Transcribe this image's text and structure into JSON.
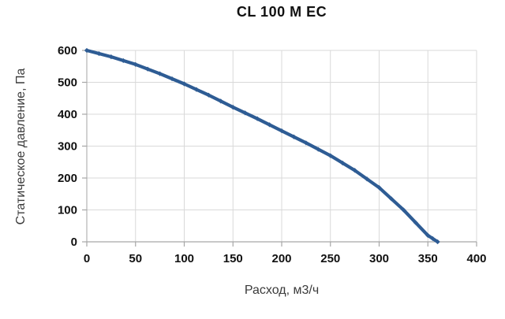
{
  "chart_data": {
    "type": "line",
    "title": "CL 100 M EC",
    "xlabel": "Расход, м3/ч",
    "ylabel": "Статическое давление, Па",
    "series": [
      {
        "name": "CL 100 M EC fan curve",
        "x": [
          0,
          25,
          50,
          75,
          100,
          125,
          150,
          175,
          200,
          225,
          250,
          275,
          300,
          325,
          350,
          360
        ],
        "y": [
          600,
          580,
          556,
          527,
          495,
          460,
          422,
          386,
          348,
          310,
          270,
          224,
          170,
          100,
          20,
          0
        ]
      }
    ],
    "xlim": [
      0,
      400
    ],
    "ylim": [
      0,
      600
    ],
    "xticks": [
      0,
      50,
      100,
      150,
      200,
      250,
      300,
      350,
      400
    ],
    "yticks": [
      0,
      100,
      200,
      300,
      400,
      500,
      600
    ],
    "grid": true,
    "legend": false,
    "colors": {
      "line": "#2E5C94",
      "grid": "#d9d9d9",
      "axis": "#a6a6a6",
      "tick_label": "#111111",
      "axis_title": "#3b3b3b",
      "background": "#ffffff"
    }
  }
}
